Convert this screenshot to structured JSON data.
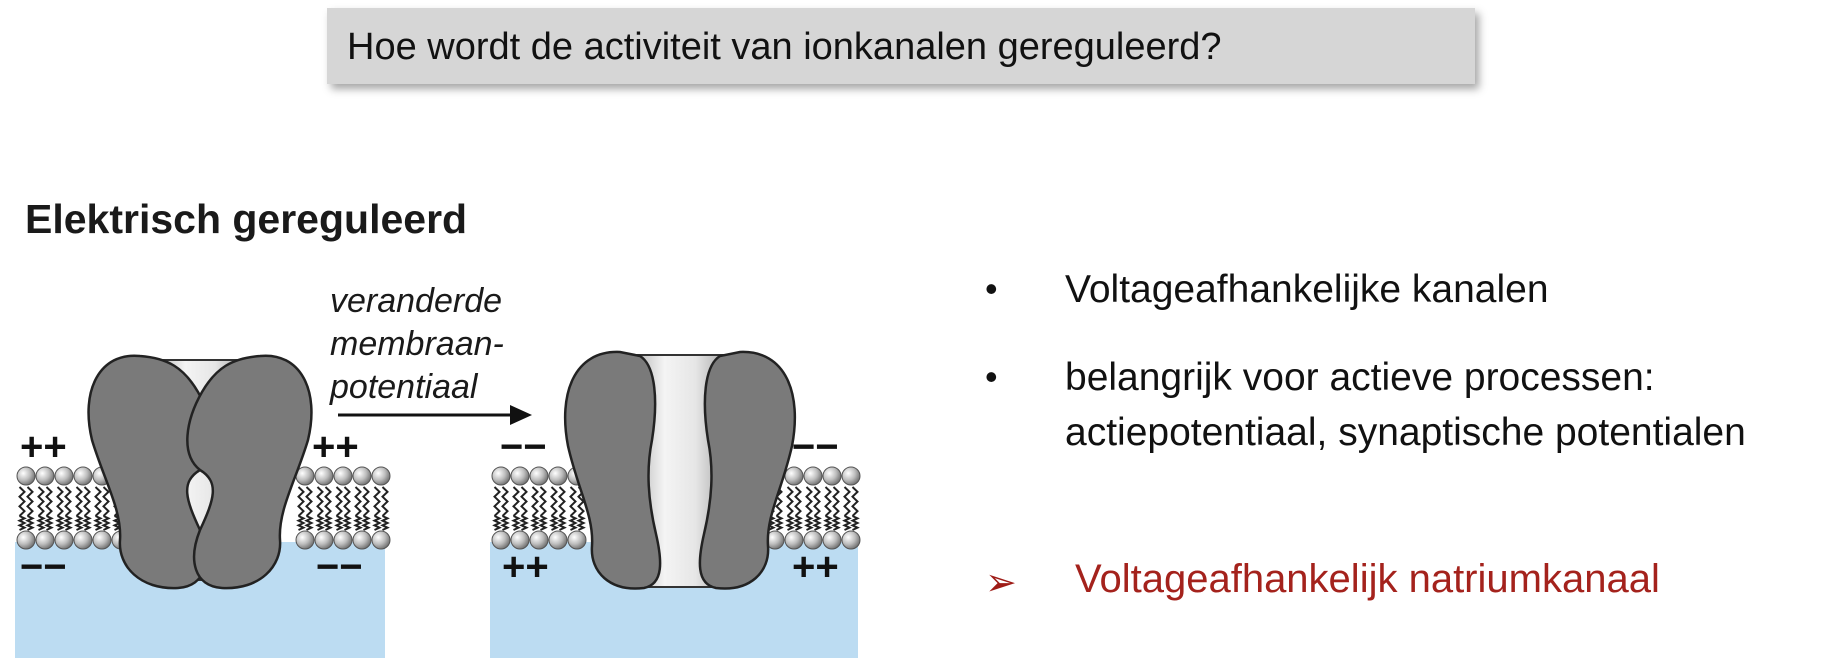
{
  "title": "Hoe wordt de activiteit van ionkanalen gereguleerd?",
  "section_heading": "Elektrisch gereguleerd",
  "arrow_label": {
    "line1": "veranderde",
    "line2": "membraan-",
    "line3": "potentiaal"
  },
  "left_panel": {
    "outside_charge_left": "++",
    "outside_charge_right": "++",
    "inside_charge_left": "−−",
    "inside_charge_right": "−−"
  },
  "right_panel": {
    "outside_charge_left": "−−",
    "outside_charge_right": "−−",
    "inside_charge_left": "++",
    "inside_charge_right": "++"
  },
  "bullets": [
    {
      "marker": "•",
      "text": "Voltageafhankelijke kanalen"
    },
    {
      "marker": "•",
      "line1": "belangrijk voor actieve processen:",
      "line2": "actiepotentiaal, synaptische potentialen"
    }
  ],
  "highlight": {
    "marker": "➢",
    "text": "Voltageafhankelijk natriumkanaal"
  },
  "colors": {
    "accent_red": "#a4221c",
    "cytoplasm_blue": "#bcdcf2",
    "protein_gray": "#7a7a7a",
    "title_box_gray": "#d6d6d6"
  }
}
